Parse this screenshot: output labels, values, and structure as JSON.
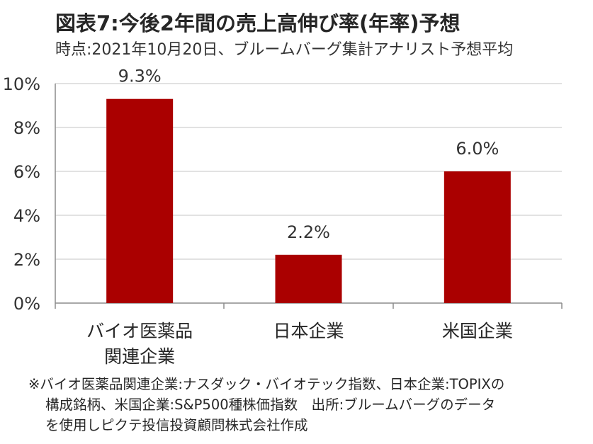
{
  "title": "図表7:今後2年間の売上高伸び率(年率)予想",
  "subtitle": "時点:2021年10月20日、ブルームバーグ集計アナリスト予想平均",
  "colors": {
    "bar": "#AA0000",
    "axis": "#8C8C8C",
    "grid": "#D9D9D9",
    "text": "#333333"
  },
  "chart_data": {
    "type": "bar",
    "categories": [
      [
        "バイオ医薬品",
        "関連企業"
      ],
      [
        "日本企業"
      ],
      [
        "米国企業"
      ]
    ],
    "values": [
      9.3,
      2.2,
      6.0
    ],
    "data_labels": [
      "9.3%",
      "2.2%",
      "6.0%"
    ],
    "ylim": [
      0,
      10
    ],
    "yticks": [
      0,
      2,
      4,
      6,
      8,
      10
    ],
    "ytick_labels": [
      "0%",
      "2%",
      "4%",
      "6%",
      "8%",
      "10%"
    ],
    "grid": true,
    "xlabel": "",
    "ylabel": ""
  },
  "footnote": {
    "line1": "※バイオ医薬品関連企業:ナスダック・バイオテック指数、日本企業:TOPIXの",
    "line2": "構成銘柄、米国企業:S&P500種株価指数　出所:ブルームバーグのデータ",
    "line3": "を使用しピクテ投信投資顧問株式会社作成"
  }
}
